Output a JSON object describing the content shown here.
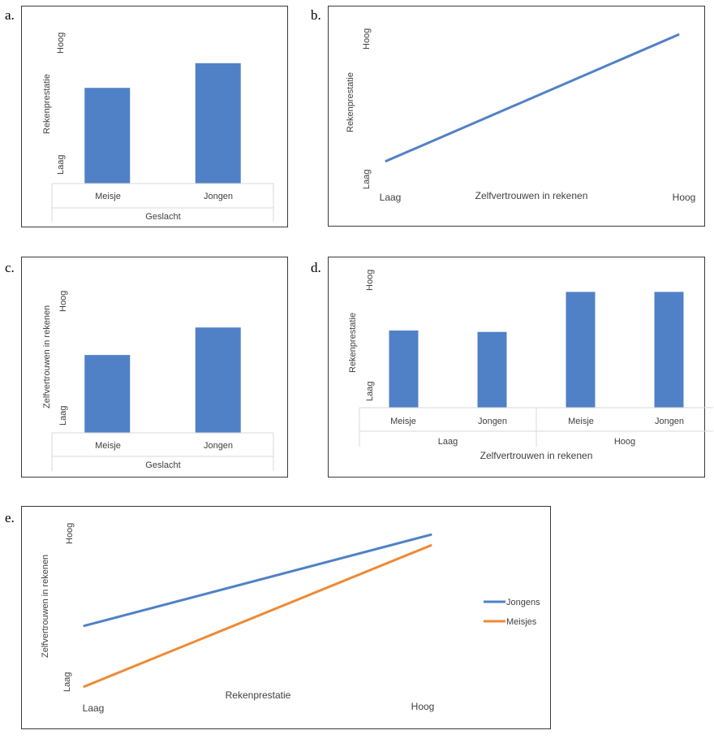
{
  "panels": [
    {
      "letter": "a."
    },
    {
      "letter": "b."
    },
    {
      "letter": "c."
    },
    {
      "letter": "d."
    },
    {
      "letter": "e."
    }
  ],
  "chart_data": [
    {
      "id": "a",
      "type": "bar",
      "categories": [
        "Meisje",
        "Jongen"
      ],
      "values": [
        0.62,
        0.78
      ],
      "ylim": [
        0,
        1
      ],
      "xlabel": "Geslacht",
      "ylabel": "Rekenprestatie",
      "ytick_low": "Laag",
      "ytick_high": "Hoog",
      "color": "#5081c6"
    },
    {
      "id": "b",
      "type": "line",
      "x": [
        0,
        1
      ],
      "series": [
        {
          "values": [
            0.05,
            0.95
          ],
          "color": "#5081c6"
        }
      ],
      "ylim": [
        0,
        1
      ],
      "xlabel": "Zelfvertrouwen in rekenen",
      "ylabel": "Rekenprestatie",
      "xtick_low": "Laag",
      "xtick_high": "Hoog",
      "ytick_low": "Laag",
      "ytick_high": "Hoog"
    },
    {
      "id": "c",
      "type": "bar",
      "categories": [
        "Meisje",
        "Jongen"
      ],
      "values": [
        0.51,
        0.69
      ],
      "ylim": [
        0,
        1
      ],
      "xlabel": "Geslacht",
      "ylabel": "Zelfvertrouwen in rekenen",
      "ytick_low": "Laag",
      "ytick_high": "Hoog",
      "color": "#5081c6"
    },
    {
      "id": "d",
      "type": "bar",
      "groups": [
        {
          "label": "Laag",
          "categories": [
            "Meisje",
            "Jongen"
          ],
          "values": [
            0.54,
            0.53
          ]
        },
        {
          "label": "Hoog",
          "categories": [
            "Meisje",
            "Jongen"
          ],
          "values": [
            0.81,
            0.81
          ]
        }
      ],
      "ylim": [
        0,
        1
      ],
      "xlabel": "Zelfvertrouwen in rekenen",
      "ylabel": "Rekenprestatie",
      "ytick_low": "Laag",
      "ytick_high": "Hoog",
      "color": "#5081c6"
    },
    {
      "id": "e",
      "type": "line",
      "x": [
        0,
        1
      ],
      "series": [
        {
          "name": "Jongens",
          "values": [
            0.42,
            0.93
          ],
          "color": "#5081c6"
        },
        {
          "name": "Meisjes",
          "values": [
            0.08,
            0.87
          ],
          "color": "#ee8a35"
        }
      ],
      "ylim": [
        0,
        1
      ],
      "xlabel": "Rekenprestatie",
      "ylabel": "Zelfvertrouwen in rekenen",
      "xtick_low": "Laag",
      "xtick_high": "Hoog",
      "ytick_low": "Laag",
      "ytick_high": "Hoog",
      "legend": "right"
    }
  ]
}
